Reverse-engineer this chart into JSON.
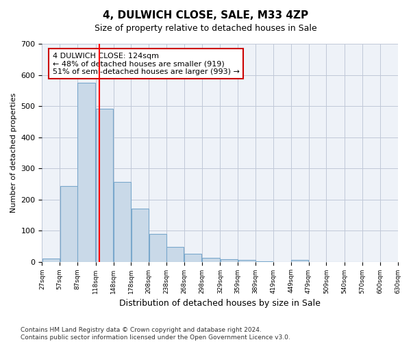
{
  "title": "4, DULWICH CLOSE, SALE, M33 4ZP",
  "subtitle": "Size of property relative to detached houses in Sale",
  "xlabel": "Distribution of detached houses by size in Sale",
  "ylabel": "Number of detached properties",
  "bar_color": "#c9d9e8",
  "bar_edge_color": "#7aa8cc",
  "grid_color": "#c0c8d8",
  "background_color": "#eef2f8",
  "red_line_x": 124,
  "annotation_text": "4 DULWICH CLOSE: 124sqm\n← 48% of detached houses are smaller (919)\n51% of semi-detached houses are larger (993) →",
  "annotation_box_color": "#ffffff",
  "annotation_box_edge": "#cc0000",
  "footnote": "Contains HM Land Registry data © Crown copyright and database right 2024.\nContains public sector information licensed under the Open Government Licence v3.0.",
  "bin_edges": [
    27,
    57,
    87,
    118,
    148,
    178,
    208,
    238,
    268,
    298,
    329,
    359,
    389,
    419,
    449,
    479,
    509,
    540,
    570,
    600,
    630
  ],
  "bar_heights": [
    10,
    242,
    575,
    492,
    257,
    170,
    90,
    47,
    25,
    12,
    8,
    5,
    2,
    0,
    5,
    0,
    0,
    0,
    0,
    0
  ],
  "ylim": [
    0,
    700
  ],
  "yticks": [
    0,
    100,
    200,
    300,
    400,
    500,
    600,
    700
  ]
}
